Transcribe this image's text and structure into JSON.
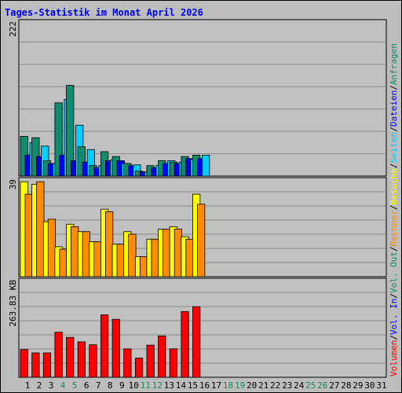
{
  "colors": {
    "background": "#bdbdbd",
    "plot_bg": "#c0c0c0",
    "grid": "#8c8c8c",
    "title": "#0000ee",
    "axis_text": "#000000",
    "weekend_day": "#1f8a5a",
    "hits": "#0e8c6c",
    "files": "#0000ff",
    "pages": "#00cfff",
    "visits": "#ffff00",
    "sites": "#ff8c00",
    "kbytes": "#ff0000",
    "divider": "#000000"
  },
  "chart_data": {
    "type": "bar",
    "title": "Tages-Statistik im Monat April 2026",
    "days": [
      "1",
      "2",
      "3",
      "4",
      "5",
      "6",
      "7",
      "8",
      "9",
      "10",
      "11",
      "12",
      "13",
      "14",
      "15",
      "16",
      "17",
      "18",
      "19",
      "20",
      "21",
      "22",
      "23",
      "24",
      "25",
      "26",
      "27",
      "28",
      "29",
      "30",
      "31"
    ],
    "weekend_days": [
      "4",
      "5",
      "11",
      "12",
      "18",
      "19",
      "25",
      "26"
    ],
    "panels": [
      {
        "name": "requests",
        "ymax": 222,
        "ymax_label": "222",
        "series": [
          {
            "name": "Anfragen",
            "color": "#0e8c6c",
            "values": [
              57,
              55,
              22,
              105,
              130,
              42,
              15,
              35,
              28,
              18,
              7,
              15,
              22,
              20,
              28,
              30
            ]
          },
          {
            "name": "Dateien",
            "color": "#0000ff",
            "values": [
              30,
              28,
              18,
              30,
              22,
              20,
              12,
              22,
              22,
              15,
              6,
              12,
              18,
              18,
              25,
              25
            ]
          },
          {
            "name": "Seiten",
            "color": "#00cfff",
            "values": [
              48,
              43,
              18,
              110,
              73,
              38,
              15,
              23,
              18,
              16,
              6,
              15,
              22,
              20,
              24,
              30
            ]
          }
        ],
        "legend_colors": [
          "#00cfff",
          "#0000ff",
          "#0e8c6c"
        ]
      },
      {
        "name": "visits",
        "ymax": 39,
        "ymax_label": "39",
        "series": [
          {
            "name": "Besuche",
            "color": "#ffff00",
            "values": [
              38,
              37,
              22,
              12,
              21,
              18,
              14,
              27,
              13,
              18,
              8,
              15,
              19,
              20,
              16,
              33
            ]
          },
          {
            "name": "Rechner",
            "color": "#ff8c00",
            "values": [
              33,
              38,
              23,
              11,
              20,
              18,
              14,
              26,
              13,
              17,
              8,
              15,
              19,
              19,
              15,
              29
            ]
          }
        ],
        "legend_colors": [
          "#ffff00",
          "#ff8c00"
        ]
      },
      {
        "name": "volume",
        "ymax": 263.83,
        "ymax_label": "263.83 KB",
        "series": [
          {
            "name": "Volumen",
            "color": "#ff0000",
            "values": [
              75,
              66,
              66,
              122,
              108,
              96,
              88,
              169,
              157,
              77,
              52,
              87,
              112,
              77,
              178,
              191
            ]
          }
        ],
        "legend_colors": [
          "#ff0000",
          "#0000ff",
          "#0e8c6c"
        ]
      }
    ],
    "legend_labels": [
      {
        "text": "Volumen",
        "color": "#ff0000"
      },
      {
        "text": "Vol. In",
        "color": "#0000ff"
      },
      {
        "text": "Vol. Out",
        "color": "#0e8c6c"
      },
      {
        "text": "Rechner",
        "color": "#ff8c00"
      },
      {
        "text": "Besuche",
        "color": "#ffff00"
      },
      {
        "text": "Seiten",
        "color": "#00cfff"
      },
      {
        "text": "Dateien",
        "color": "#0000ff"
      },
      {
        "text": "Anfragen",
        "color": "#0e8c6c"
      }
    ],
    "legend_separator": "/"
  }
}
